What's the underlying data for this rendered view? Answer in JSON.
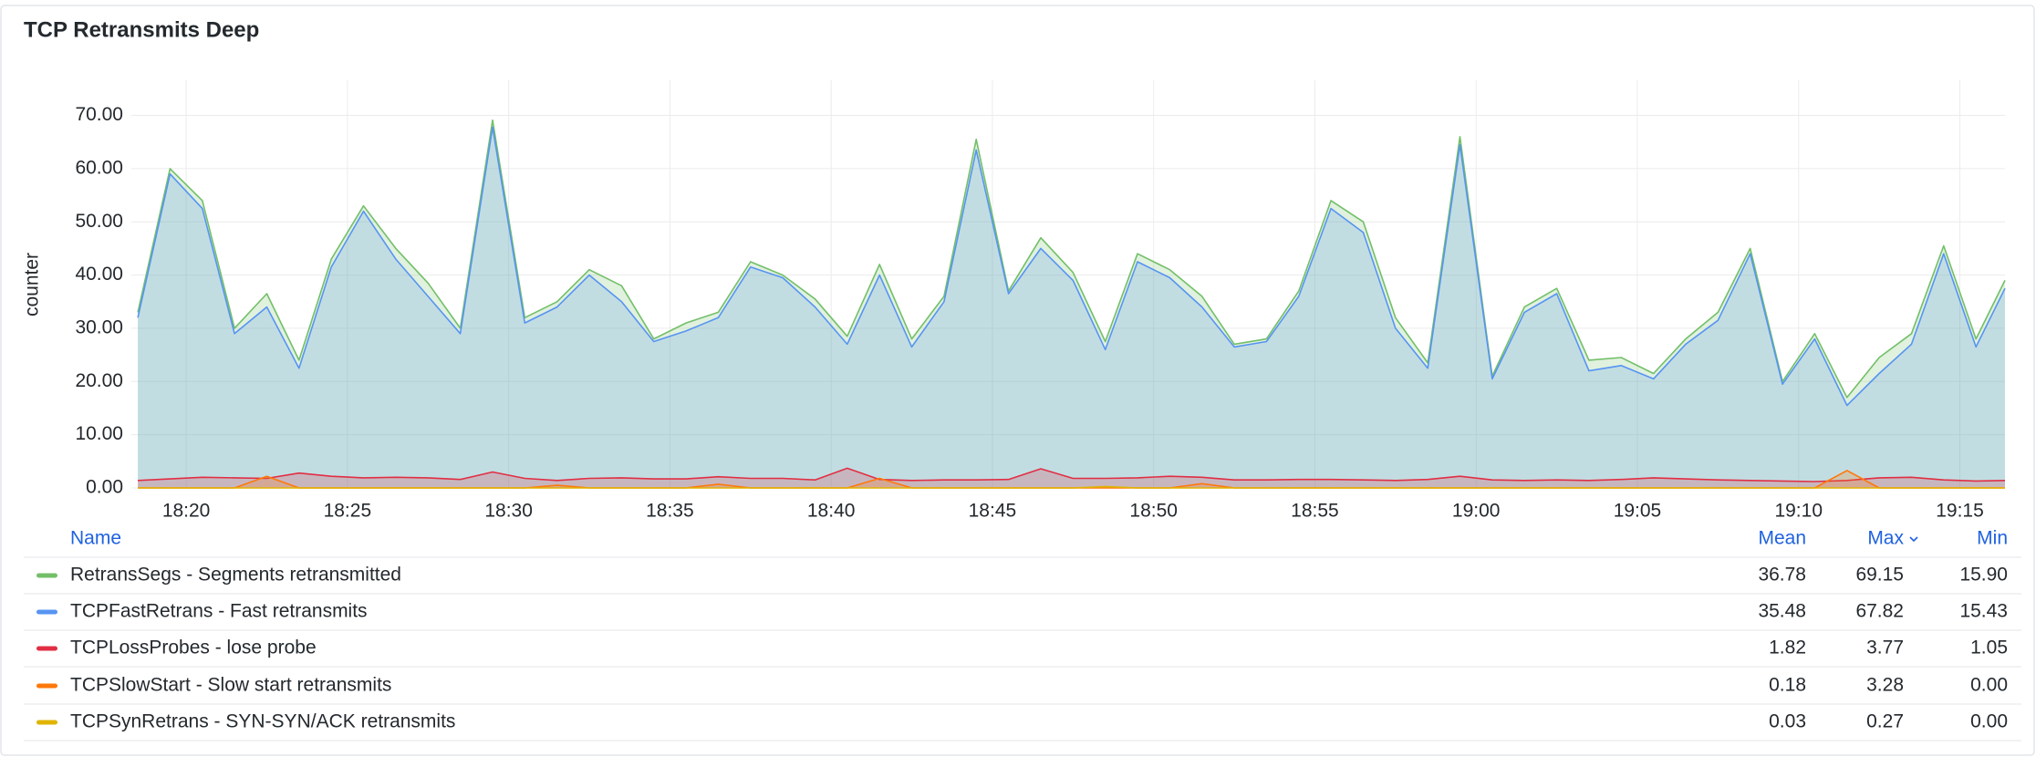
{
  "chart_data": {
    "type": "line",
    "title": "TCP Retransmits Deep",
    "ylabel": "counter",
    "xlim": [
      1098.3,
      1156.4
    ],
    "xticks": [
      {
        "value": 1100,
        "label": "18:20"
      },
      {
        "value": 1105,
        "label": "18:25"
      },
      {
        "value": 1110,
        "label": "18:30"
      },
      {
        "value": 1115,
        "label": "18:35"
      },
      {
        "value": 1120,
        "label": "18:40"
      },
      {
        "value": 1125,
        "label": "18:45"
      },
      {
        "value": 1130,
        "label": "18:50"
      },
      {
        "value": 1135,
        "label": "18:55"
      },
      {
        "value": 1140,
        "label": "19:00"
      },
      {
        "value": 1145,
        "label": "19:05"
      },
      {
        "value": 1150,
        "label": "19:10"
      },
      {
        "value": 1155,
        "label": "19:15"
      }
    ],
    "ylim": [
      0,
      76.6
    ],
    "yticks": [
      {
        "value": 0,
        "label": "0.00"
      },
      {
        "value": 10,
        "label": "10.00"
      },
      {
        "value": 20,
        "label": "20.00"
      },
      {
        "value": 30,
        "label": "30.00"
      },
      {
        "value": 40,
        "label": "40.00"
      },
      {
        "value": 50,
        "label": "50.00"
      },
      {
        "value": 60,
        "label": "60.00"
      },
      {
        "value": 70,
        "label": "70.00"
      }
    ],
    "grid": true,
    "x": [
      1098.5,
      1099.5,
      1100.5,
      1101.5,
      1102.5,
      1103.5,
      1104.5,
      1105.5,
      1106.5,
      1107.5,
      1108.5,
      1109.5,
      1110.5,
      1111.5,
      1112.5,
      1113.5,
      1114.5,
      1115.5,
      1116.5,
      1117.5,
      1118.5,
      1119.5,
      1120.5,
      1121.5,
      1122.5,
      1123.5,
      1124.5,
      1125.5,
      1126.5,
      1127.5,
      1128.5,
      1129.5,
      1130.5,
      1131.5,
      1132.5,
      1133.5,
      1134.5,
      1135.5,
      1136.5,
      1137.5,
      1138.5,
      1139.5,
      1140.5,
      1141.5,
      1142.5,
      1143.5,
      1144.5,
      1145.5,
      1146.5,
      1147.5,
      1148.5,
      1149.5,
      1150.5,
      1151.5,
      1152.5,
      1153.5,
      1154.5,
      1155.5,
      1156.4
    ],
    "legend_columns": [
      "Name",
      "Mean",
      "Max",
      "Min"
    ],
    "series": [
      {
        "name": "RetransSegs - Segments retransmitted",
        "color": "#73bf69",
        "stats": [
          "36.78",
          "69.15",
          "15.90"
        ],
        "values": [
          33,
          60,
          54,
          30,
          36.5,
          24,
          43,
          53,
          45,
          38.5,
          30,
          69.1,
          32,
          35,
          41,
          38,
          28,
          31,
          33,
          42.5,
          40,
          35.5,
          28.5,
          42,
          28,
          36,
          65.5,
          37,
          47,
          40.5,
          27.5,
          44,
          41,
          36,
          27,
          28,
          37,
          54,
          50,
          32,
          23.5,
          66,
          21,
          34,
          37.5,
          24,
          24.5,
          21.5,
          28,
          33,
          45,
          20,
          29,
          17,
          24.5,
          29,
          45.5,
          28,
          39
        ]
      },
      {
        "name": "TCPFastRetrans - Fast retransmits",
        "color": "#5794f2",
        "stats": [
          "35.48",
          "67.82",
          "15.43"
        ],
        "values": [
          32,
          59,
          52.5,
          29,
          34,
          22.5,
          41.5,
          52,
          43,
          36,
          29,
          67.8,
          31,
          34,
          40,
          35,
          27.5,
          29.5,
          32,
          41.5,
          39.5,
          34,
          27,
          40,
          26.5,
          35,
          63.5,
          36.5,
          45,
          39,
          26,
          42.5,
          39.5,
          34,
          26.5,
          27.5,
          36,
          52.5,
          48,
          30,
          22.5,
          64.5,
          20.5,
          33,
          36.5,
          22,
          23,
          20.5,
          27,
          31.5,
          44,
          19.5,
          28,
          15.5,
          21.5,
          27,
          44,
          26.5,
          37.5
        ]
      },
      {
        "name": "TCPLossProbes - lose probe",
        "color": "#e02f44",
        "stats": [
          "1.82",
          "3.77",
          "1.05"
        ],
        "values": [
          1.4,
          1.7,
          2.0,
          1.9,
          1.8,
          2.8,
          2.2,
          1.9,
          2.0,
          1.9,
          1.6,
          3.0,
          1.8,
          1.4,
          1.8,
          1.9,
          1.7,
          1.7,
          2.1,
          1.8,
          1.8,
          1.5,
          3.7,
          1.6,
          1.4,
          1.5,
          1.5,
          1.6,
          3.6,
          1.8,
          1.8,
          1.9,
          2.2,
          2.0,
          1.5,
          1.5,
          1.6,
          1.6,
          1.5,
          1.4,
          1.6,
          2.2,
          1.5,
          1.4,
          1.5,
          1.4,
          1.6,
          1.9,
          1.7,
          1.5,
          1.4,
          1.3,
          1.2,
          1.4,
          1.9,
          2.0,
          1.5,
          1.3,
          1.4
        ]
      },
      {
        "name": "TCPSlowStart - Slow start retransmits",
        "color": "#ff780a",
        "stats": [
          "0.18",
          "3.28",
          "0.00"
        ],
        "values": [
          0,
          0,
          0,
          0,
          2.2,
          0,
          0,
          0,
          0,
          0,
          0,
          0,
          0,
          0.5,
          0,
          0,
          0,
          0,
          0.7,
          0,
          0,
          0,
          0,
          1.8,
          0,
          0,
          0,
          0,
          0,
          0,
          0,
          0,
          0,
          0.8,
          0,
          0,
          0,
          0,
          0,
          0,
          0,
          0,
          0,
          0,
          0,
          0,
          0,
          0,
          0,
          0,
          0,
          0,
          0,
          3.28,
          0,
          0,
          0,
          0,
          0
        ]
      },
      {
        "name": "TCPSynRetrans - SYN-SYN/ACK retransmits",
        "color": "#e0b400",
        "stats": [
          "0.03",
          "0.27",
          "0.00"
        ],
        "values": [
          0,
          0,
          0,
          0,
          0,
          0,
          0,
          0,
          0,
          0,
          0,
          0,
          0,
          0,
          0,
          0,
          0,
          0,
          0,
          0,
          0,
          0,
          0,
          0,
          0,
          0,
          0,
          0,
          0,
          0,
          0.27,
          0,
          0,
          0,
          0,
          0,
          0,
          0,
          0,
          0,
          0,
          0,
          0,
          0,
          0,
          0,
          0,
          0,
          0,
          0,
          0,
          0,
          0,
          0,
          0,
          0,
          0,
          0,
          0
        ]
      }
    ]
  }
}
